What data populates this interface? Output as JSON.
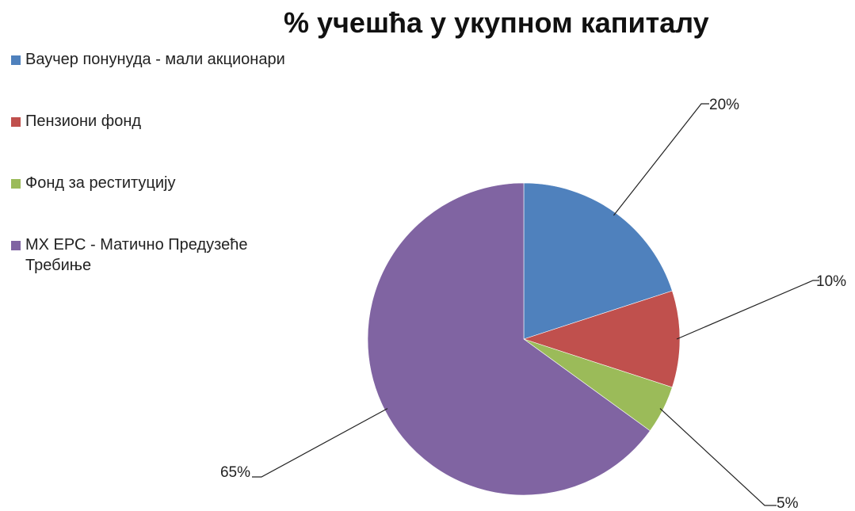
{
  "chart_data": {
    "type": "pie",
    "title": "% учешћа у укупном капиталу",
    "legend_position": "left",
    "categories": [
      "Ваучер понунуда - мали акционари",
      "Пензиони фонд",
      "Фонд за реституцију",
      "МХ ЕРС - Матично Предузеће Требиње"
    ],
    "values": [
      20,
      10,
      5,
      65
    ],
    "data_labels": [
      "20%",
      "10%",
      "5%",
      "65%"
    ],
    "colors": [
      "#4F81BD",
      "#C0504D",
      "#9BBB59",
      "#8064A2"
    ]
  }
}
